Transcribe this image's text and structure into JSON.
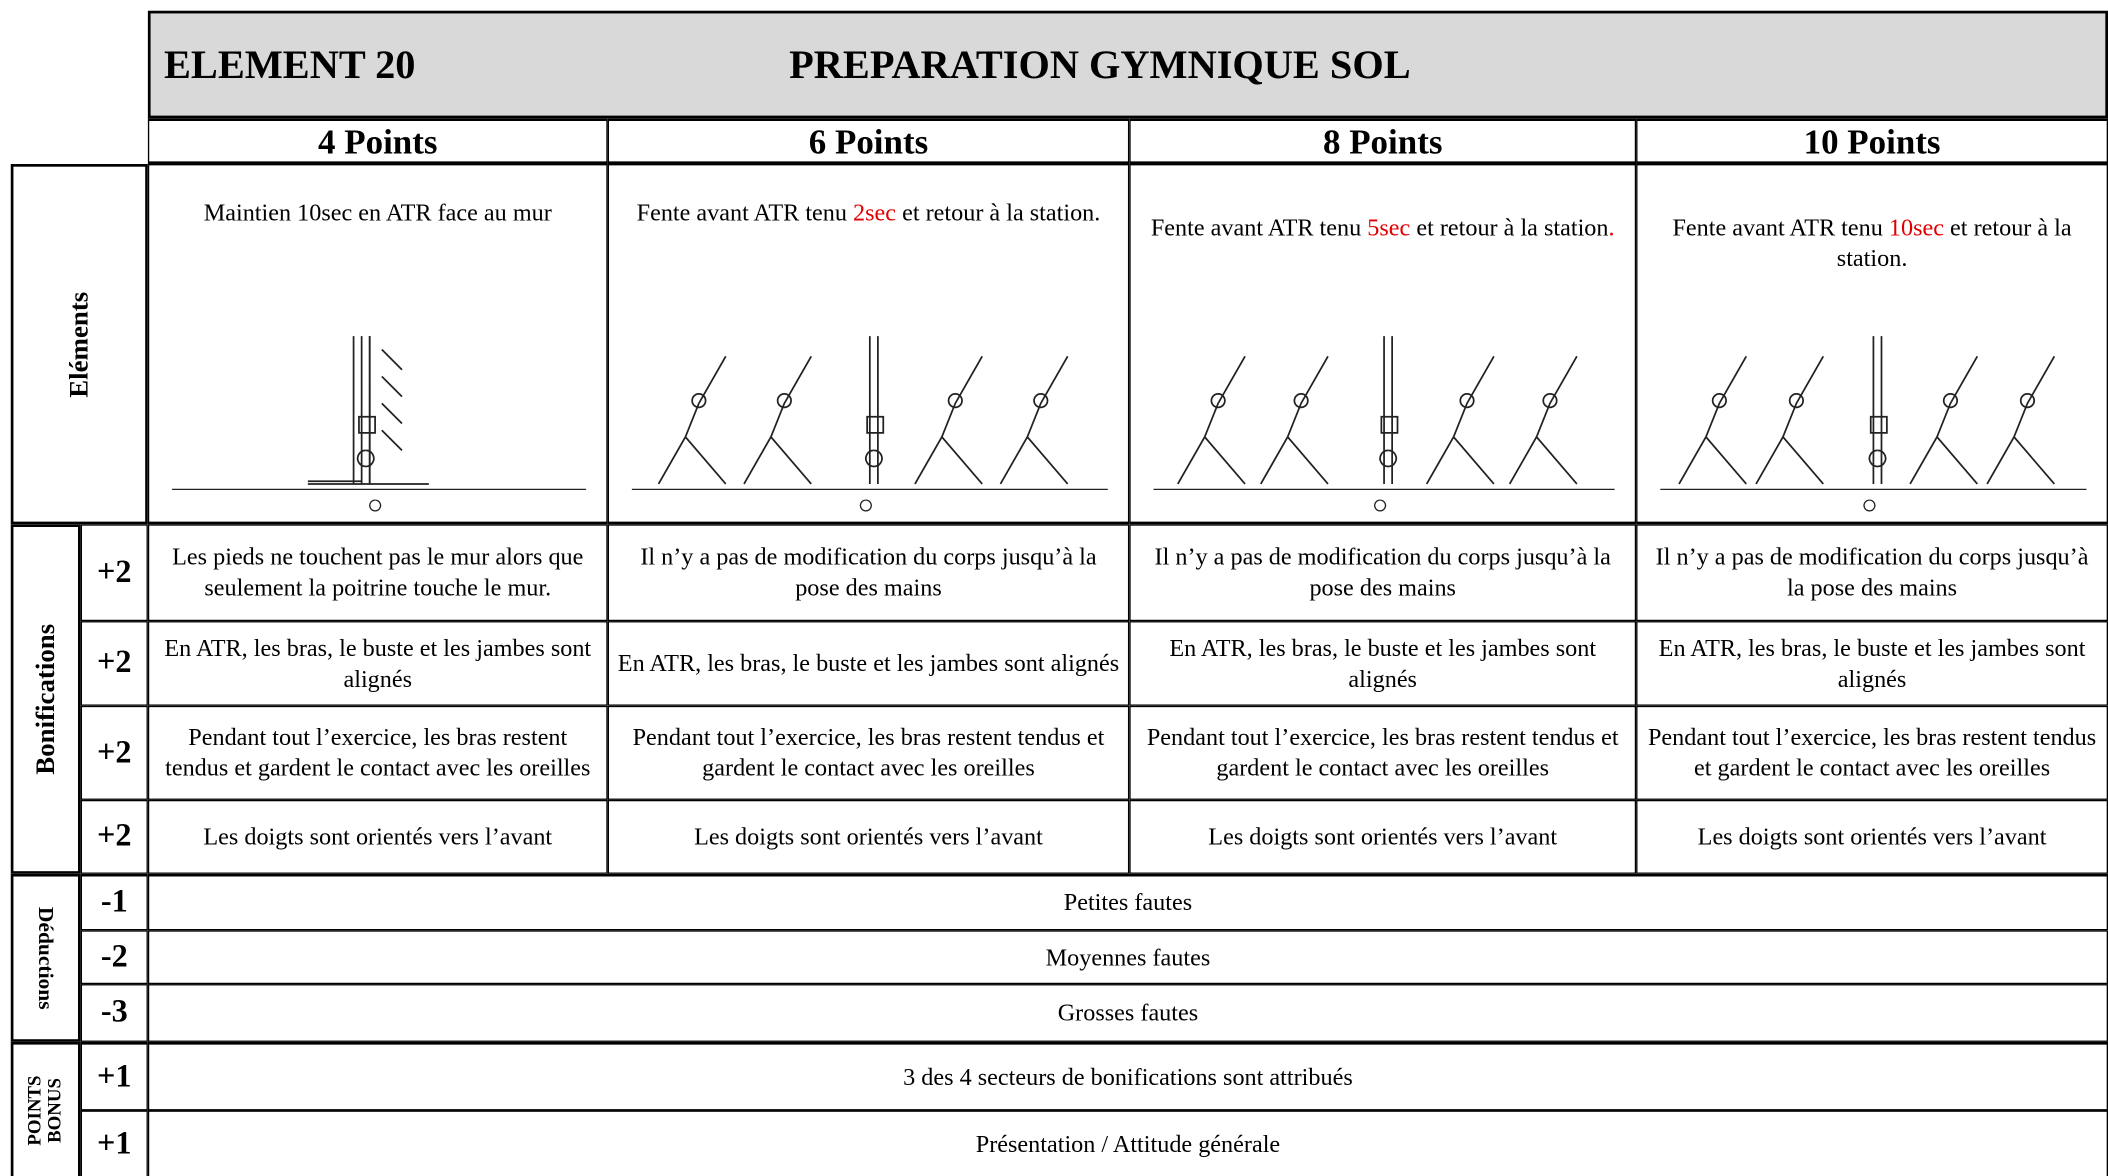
{
  "header": {
    "element": "ELEMENT 20",
    "title": "PREPARATION GYMNIQUE SOL"
  },
  "columns": [
    "4 Points",
    "6 Points",
    "8 Points",
    "10 Points"
  ],
  "elements": {
    "label": "Eléments",
    "cells": [
      [
        {
          "text": "Maintien 10sec en ATR face au mur"
        }
      ],
      [
        {
          "text": "Fente avant ATR tenu "
        },
        {
          "text": "2sec",
          "color": "#e00000"
        },
        {
          "text": " et retour à la station."
        }
      ],
      [
        {
          "text": "Fente avant ATR tenu "
        },
        {
          "text": "5sec",
          "color": "#e00000"
        },
        {
          "text": " et retour à la station"
        },
        {
          "text": ".",
          "color": "#e00000"
        }
      ],
      [
        {
          "text": "Fente avant ATR tenu "
        },
        {
          "text": "10sec",
          "color": "#e00000"
        },
        {
          "text": " et retour à la station."
        }
      ]
    ]
  },
  "bonifications": {
    "label": "Bonifications",
    "rows": [
      {
        "points": "+2",
        "cells": [
          "Les pieds ne touchent pas le mur alors que seulement la poitrine touche le mur.",
          "Il n’y a pas de modification du corps jusqu’à la pose des mains",
          "Il n’y a pas de modification du corps jusqu’à la pose des mains",
          "Il n’y a pas de modification du corps jusqu’à la pose des mains"
        ]
      },
      {
        "points": "+2",
        "cells": [
          "En ATR, les bras, le buste et les jambes sont alignés",
          "En ATR, les bras, le buste et les jambes sont alignés",
          "En ATR, les bras, le buste et les jambes sont alignés",
          "En ATR, les bras, le buste et les jambes sont alignés"
        ]
      },
      {
        "points": "+2",
        "cells": [
          "Pendant tout l’exercice, les bras restent tendus et gardent le contact avec les oreilles",
          "Pendant tout l’exercice, les bras restent tendus et gardent le contact avec les oreilles",
          "Pendant tout l’exercice, les bras restent tendus et gardent le contact avec les oreilles",
          "Pendant tout l’exercice, les bras restent tendus et gardent le contact avec les oreilles"
        ]
      },
      {
        "points": "+2",
        "cells": [
          "Les doigts sont orientés vers l’avant",
          "Les doigts sont orientés vers l’avant",
          "Les doigts sont orientés vers l’avant",
          "Les doigts sont orientés vers l’avant"
        ]
      }
    ]
  },
  "deductions": {
    "label": "Déductions",
    "rows": [
      {
        "points": "-1",
        "text": "Petites fautes"
      },
      {
        "points": "-2",
        "text": "Moyennes fautes"
      },
      {
        "points": "-3",
        "text": "Grosses fautes"
      }
    ]
  },
  "bonus": {
    "label_lines": [
      "POINTS",
      "BONUS"
    ],
    "rows": [
      {
        "points": "+1",
        "text": "3 des 4 secteurs de bonifications sont attribués"
      },
      {
        "points": "+1",
        "text": "Présentation / Attitude générale"
      }
    ]
  }
}
